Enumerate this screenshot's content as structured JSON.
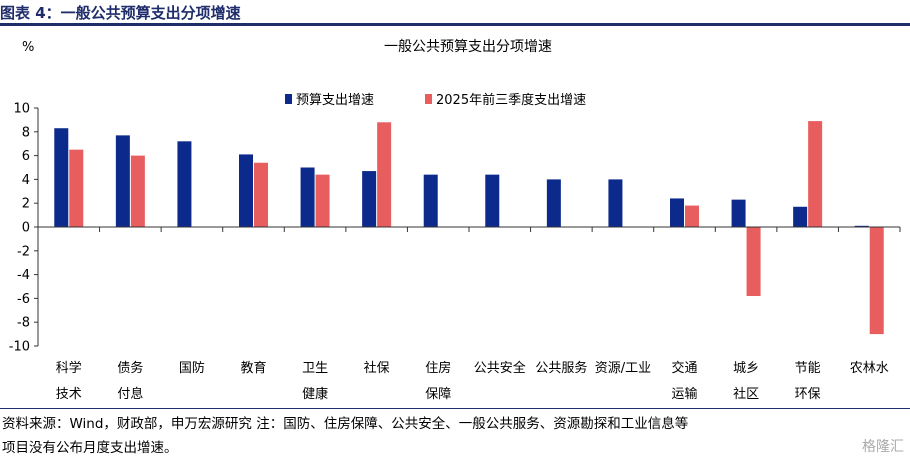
{
  "figure_title": "图表 4：一般公共预算支出分项增速",
  "chart_data": {
    "type": "bar",
    "title": "一般公共预算支出分项增速",
    "ylabel": "%",
    "ylim": [
      -10,
      10
    ],
    "yticks": [
      10,
      8,
      6,
      4,
      2,
      0,
      -2,
      -4,
      -6,
      -8,
      -10
    ],
    "categories": [
      [
        "科学",
        "技术"
      ],
      [
        "债务",
        "付息"
      ],
      [
        "国防"
      ],
      [
        "教育"
      ],
      [
        "卫生",
        "健康"
      ],
      [
        "社保"
      ],
      [
        "住房",
        "保障"
      ],
      [
        "公共安全"
      ],
      [
        "公共服务"
      ],
      [
        "资源/工业"
      ],
      [
        "交通",
        "运输"
      ],
      [
        "城乡",
        "社区"
      ],
      [
        "节能",
        "环保"
      ],
      [
        "农林水"
      ]
    ],
    "series": [
      {
        "name": "预算支出增速",
        "color": "#0b2a8c",
        "values": [
          8.3,
          7.7,
          7.2,
          6.1,
          5.0,
          4.7,
          4.4,
          4.4,
          4.0,
          4.0,
          2.4,
          2.3,
          1.7,
          0.1
        ]
      },
      {
        "name": "2025年前三季度支出增速",
        "color": "#e85e5e",
        "values": [
          6.5,
          6.0,
          null,
          5.4,
          4.4,
          8.8,
          null,
          null,
          null,
          null,
          1.8,
          -5.8,
          8.9,
          -9.0
        ]
      }
    ],
    "legend_position": "top-center",
    "grid": false
  },
  "footnote": {
    "line1": "资料来源：Wind，财政部，申万宏源研究  注：国防、住房保障、公共安全、一般公共服务、资源勘探和工业信息等",
    "line2": "项目没有公布月度支出增速。"
  },
  "watermark": "格隆汇"
}
